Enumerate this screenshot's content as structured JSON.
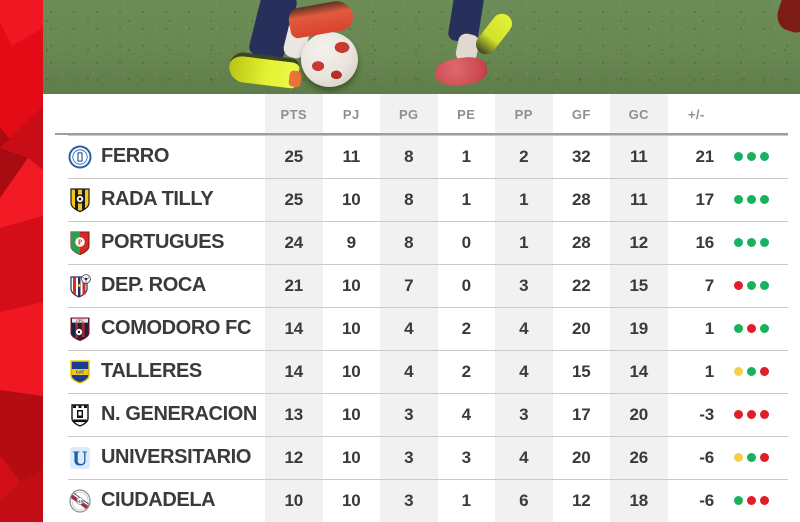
{
  "colors": {
    "accent_red": "#e30b16",
    "form_green": "#16b25e",
    "form_yellow": "#f6d04d",
    "form_red": "#e01e25",
    "stripe_gray": "#f1f1f1",
    "header_text": "#8f8f8f",
    "body_text": "#3a3a3a"
  },
  "chart_data": {
    "type": "table",
    "columns": [
      "PTS",
      "PJ",
      "PG",
      "PE",
      "PP",
      "GF",
      "GC",
      "+/-"
    ],
    "rows": [
      {
        "team": "FERRO",
        "logo": "ferro-crest",
        "values": [
          25,
          11,
          8,
          1,
          2,
          32,
          11,
          21
        ],
        "form": [
          "green",
          "green",
          "green"
        ]
      },
      {
        "team": "RADA TILLY",
        "logo": "rada-tilly-crest",
        "values": [
          25,
          10,
          8,
          1,
          1,
          28,
          11,
          17
        ],
        "form": [
          "green",
          "green",
          "green"
        ]
      },
      {
        "team": "PORTUGUES",
        "logo": "portugues-crest",
        "values": [
          24,
          9,
          8,
          0,
          1,
          28,
          12,
          16
        ],
        "form": [
          "green",
          "green",
          "green"
        ]
      },
      {
        "team": "DEP. ROCA",
        "logo": "dep-roca-crest",
        "values": [
          21,
          10,
          7,
          0,
          3,
          22,
          15,
          7
        ],
        "form": [
          "red",
          "green",
          "green"
        ]
      },
      {
        "team": "COMODORO FC",
        "logo": "comodoro-fc-crest",
        "values": [
          14,
          10,
          4,
          2,
          4,
          20,
          19,
          1
        ],
        "form": [
          "green",
          "red",
          "green"
        ]
      },
      {
        "team": "TALLERES",
        "logo": "talleres-crest",
        "values": [
          14,
          10,
          4,
          2,
          4,
          15,
          14,
          1
        ],
        "form": [
          "yellow",
          "green",
          "red"
        ]
      },
      {
        "team": "N. GENERACION",
        "logo": "n-generacion-crest",
        "values": [
          13,
          10,
          3,
          4,
          3,
          17,
          20,
          -3
        ],
        "form": [
          "red",
          "red",
          "red"
        ]
      },
      {
        "team": "UNIVERSITARIO",
        "logo": "universitario-crest",
        "values": [
          12,
          10,
          3,
          3,
          4,
          20,
          26,
          -6
        ],
        "form": [
          "yellow",
          "green",
          "red"
        ]
      },
      {
        "team": "CIUDADELA",
        "logo": "ciudadela-crest",
        "values": [
          10,
          10,
          3,
          1,
          6,
          12,
          18,
          -6
        ],
        "form": [
          "green",
          "red",
          "red"
        ]
      }
    ]
  }
}
